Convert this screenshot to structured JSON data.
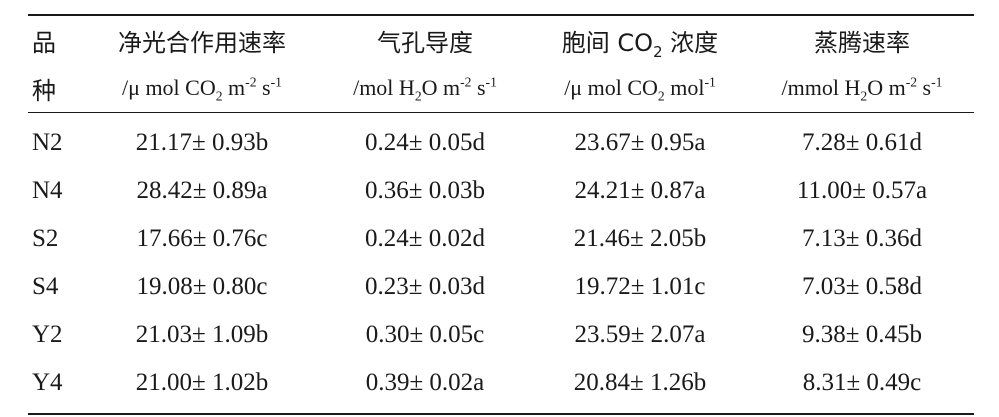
{
  "table": {
    "header_row1": {
      "c0": "品",
      "c1": "净光合作用速率",
      "c2": "气孔导度",
      "c3_pre": "胞间 CO",
      "c3_sub": "2",
      "c3_post": " 浓度",
      "c4": "蒸腾速率"
    },
    "header_row2": {
      "c0": "种",
      "c1_pre": "/μ  mol CO",
      "c1_sub": "2",
      "c1_mid": " m",
      "c1_sup1": "-2",
      "c1_mid2": " s",
      "c1_sup2": "-1",
      "c2_pre": "/mol H",
      "c2_sub": "2",
      "c2_mid": "O m",
      "c2_sup1": "-2",
      "c2_mid2": " s",
      "c2_sup2": "-1",
      "c3_pre": "/μ  mol CO",
      "c3_sub": "2",
      "c3_mid": " mol",
      "c3_sup": "-1",
      "c4_pre": "/mmol H",
      "c4_sub": "2",
      "c4_mid": "O m",
      "c4_sup1": "-2",
      "c4_mid2": " s",
      "c4_sup2": "-1"
    },
    "rows": [
      {
        "variety": "N2",
        "pn": "21.17±  0.93b",
        "gs": "0.24±  0.05d",
        "ci": "23.67±  0.95a",
        "tr": "7.28±  0.61d"
      },
      {
        "variety": "N4",
        "pn": "28.42±  0.89a",
        "gs": "0.36±  0.03b",
        "ci": "24.21±  0.87a",
        "tr": "11.00±  0.57a"
      },
      {
        "variety": "S2",
        "pn": "17.66±  0.76c",
        "gs": "0.24±  0.02d",
        "ci": "21.46±  2.05b",
        "tr": "7.13±  0.36d"
      },
      {
        "variety": "S4",
        "pn": "19.08±  0.80c",
        "gs": "0.23±  0.03d",
        "ci": "19.72±  1.01c",
        "tr": "7.03±  0.58d"
      },
      {
        "variety": "Y2",
        "pn": "21.03±  1.09b",
        "gs": "0.30±  0.05c",
        "ci": "23.59±  2.07a",
        "tr": "9.38±  0.45b"
      },
      {
        "variety": "Y4",
        "pn": "21.00±  1.02b",
        "gs": "0.39±  0.02a",
        "ci": "20.84±  1.26b",
        "tr": "8.31±  0.49c"
      }
    ]
  }
}
